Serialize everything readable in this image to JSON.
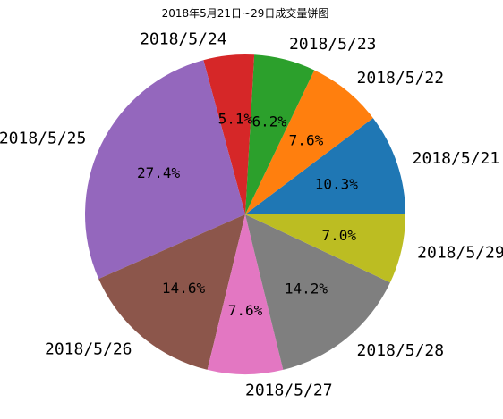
{
  "chart_data": {
    "type": "pie",
    "title": "2018年5月21日~29日成交量饼图",
    "categories": [
      "2018/5/21",
      "2018/5/22",
      "2018/5/23",
      "2018/5/24",
      "2018/5/25",
      "2018/5/26",
      "2018/5/27",
      "2018/5/28",
      "2018/5/29"
    ],
    "values": [
      10.3,
      7.6,
      6.2,
      5.1,
      27.4,
      14.6,
      7.6,
      14.2,
      7.0
    ],
    "percent_labels": [
      "10.3%",
      "7.6%",
      "6.2%",
      "5.1%",
      "27.4%",
      "14.6%",
      "7.6%",
      "14.2%",
      "7.0%"
    ],
    "colors": [
      "#1f77b4",
      "#ff7f0e",
      "#2ca02c",
      "#d62728",
      "#9467bd",
      "#8c564b",
      "#e377c2",
      "#7f7f7f",
      "#bcbd22"
    ],
    "start_angle_deg": 0,
    "direction": "counterclockwise",
    "legend": "none"
  }
}
